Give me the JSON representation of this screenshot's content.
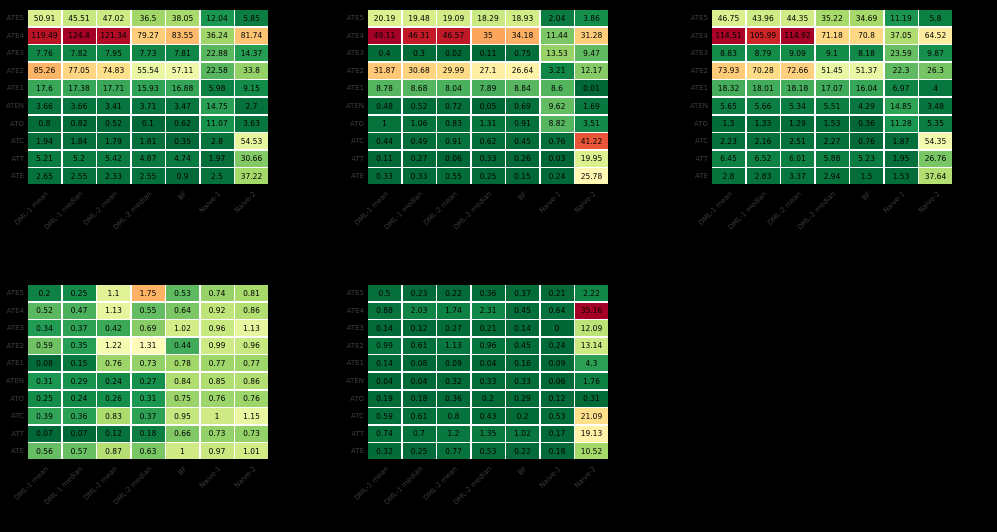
{
  "figure": {
    "background": "#000000",
    "tick_label_color": "#3c3c3c",
    "cell_text_color": "#000000",
    "grid_line_color": "#ffffff"
  },
  "colormap_stops": [
    "#006837",
    "#1a9850",
    "#66bd63",
    "#a6d96a",
    "#d9ef8b",
    "#ffffbf",
    "#fee08b",
    "#fdae61",
    "#f46d43",
    "#d73027",
    "#a50026"
  ],
  "chart_data": [
    {
      "type": "heatmap",
      "panel": "top-left",
      "rows": [
        "ATE5",
        "ATE4",
        "ATE3",
        "ATE2",
        "ATE1",
        "ATEN",
        "ATO",
        "ATC",
        "ATT",
        "ATE"
      ],
      "cols": [
        "DML-1 mean",
        "DML-1 median",
        "DML-2 mean",
        "DML-2 median",
        "BF",
        "Naive-1",
        "Naive-2"
      ],
      "values": [
        [
          50.91,
          45.51,
          47.02,
          36.5,
          38.05,
          12.04,
          5.85
        ],
        [
          119.49,
          124.4,
          121.34,
          79.27,
          83.55,
          36.24,
          81.74
        ],
        [
          7.76,
          7.82,
          7.95,
          7.73,
          7.81,
          22.88,
          14.37
        ],
        [
          85.26,
          77.05,
          74.83,
          55.54,
          57.11,
          22.58,
          33.8
        ],
        [
          17.6,
          17.38,
          17.71,
          15.93,
          16.88,
          5.98,
          9.15
        ],
        [
          3.66,
          3.66,
          3.41,
          3.71,
          3.47,
          14.75,
          2.7
        ],
        [
          0.8,
          0.82,
          0.52,
          0.1,
          0.62,
          11.07,
          3.63
        ],
        [
          1.94,
          1.84,
          1.79,
          1.81,
          0.35,
          2.8,
          54.53
        ],
        [
          5.21,
          5.2,
          5.42,
          4.87,
          4.74,
          1.97,
          30.66
        ],
        [
          2.65,
          2.55,
          2.33,
          2.55,
          0.9,
          2.5,
          37.22
        ]
      ],
      "color_scale": {
        "palette": "RdYlGn reversed",
        "vmin": null,
        "vmax": null
      }
    },
    {
      "type": "heatmap",
      "panel": "top-middle",
      "rows": [
        "ATE5",
        "ATE4",
        "ATE3",
        "ATE2",
        "ATE1",
        "ATEN",
        "ATO",
        "ATC",
        "ATT",
        "ATE"
      ],
      "cols": [
        "DML-1 mean",
        "DML-1 median",
        "DML-2 mean",
        "DML-2 median",
        "BF",
        "Naive-1",
        "Naive-2"
      ],
      "values": [
        [
          20.19,
          19.48,
          19.09,
          18.29,
          18.93,
          2.04,
          3.86
        ],
        [
          49.11,
          46.31,
          46.57,
          35,
          34.18,
          11.44,
          31.28
        ],
        [
          0.4,
          0.3,
          0.02,
          0.11,
          0.75,
          13.53,
          9.47
        ],
        [
          31.87,
          30.68,
          29.99,
          27.1,
          26.64,
          3.21,
          12.17
        ],
        [
          8.78,
          8.68,
          8.04,
          7.89,
          8.84,
          8.6,
          0.01
        ],
        [
          0.48,
          0.52,
          0.72,
          0.05,
          0.69,
          9.62,
          1.69
        ],
        [
          1,
          1.06,
          0.83,
          1.31,
          0.91,
          8.82,
          3.51
        ],
        [
          0.44,
          0.49,
          0.91,
          0.62,
          0.45,
          0.76,
          41.22
        ],
        [
          0.11,
          0.27,
          0.06,
          0.33,
          0.26,
          0.03,
          19.95
        ],
        [
          0.33,
          0.33,
          0.55,
          0.25,
          0.15,
          0.24,
          25.78
        ]
      ],
      "color_scale": {
        "palette": "RdYlGn reversed",
        "vmin": null,
        "vmax": null
      }
    },
    {
      "type": "heatmap",
      "panel": "top-right",
      "rows": [
        "ATE5",
        "ATE4",
        "ATE3",
        "ATE2",
        "ATE1",
        "ATEN",
        "ATO",
        "ATC",
        "ATT",
        "ATE"
      ],
      "cols": [
        "DML-1 mean",
        "DML-1 median",
        "DML-2 mean",
        "DML-2 median",
        "BF",
        "Naive-1",
        "Naive-2"
      ],
      "values": [
        [
          46.75,
          43.96,
          44.35,
          35.22,
          34.69,
          11.19,
          5.8
        ],
        [
          114.51,
          105.99,
          114.92,
          71.18,
          70.8,
          37.05,
          64.52
        ],
        [
          8.83,
          8.79,
          9.09,
          9.1,
          8.18,
          23.59,
          9.87
        ],
        [
          73.93,
          70.28,
          72.66,
          51.45,
          51.37,
          22.3,
          26.3
        ],
        [
          18.32,
          18.01,
          18.18,
          17.07,
          16.04,
          6.97,
          4
        ],
        [
          5.65,
          5.66,
          5.34,
          5.51,
          4.29,
          14.85,
          3.48
        ],
        [
          1.3,
          1.33,
          1.29,
          1.53,
          0.36,
          11.28,
          5.35
        ],
        [
          2.23,
          2.16,
          2.51,
          2.27,
          0.76,
          1.87,
          54.35
        ],
        [
          6.45,
          6.52,
          6.01,
          5.88,
          5.23,
          1.95,
          26.76
        ],
        [
          2.8,
          2.83,
          3.37,
          2.94,
          1.5,
          1.53,
          37.64
        ]
      ],
      "color_scale": {
        "palette": "RdYlGn reversed",
        "vmin": null,
        "vmax": null
      }
    },
    {
      "type": "heatmap",
      "panel": "bottom-left",
      "rows": [
        "ATE5",
        "ATE4",
        "ATE3",
        "ATE2",
        "ATE1",
        "ATEN",
        "ATO",
        "ATC",
        "ATT",
        "ATE"
      ],
      "cols": [
        "DML-1 mean",
        "DML-1 median",
        "DML-2 mean",
        "DML-2 median",
        "BF",
        "Naive-1",
        "Naive-2"
      ],
      "values": [
        [
          0.2,
          0.25,
          1.1,
          1.75,
          0.53,
          0.74,
          0.81
        ],
        [
          0.52,
          0.47,
          1.13,
          0.55,
          0.64,
          0.92,
          0.86
        ],
        [
          0.34,
          0.37,
          0.42,
          0.69,
          1.02,
          0.96,
          1.13
        ],
        [
          0.59,
          0.35,
          1.22,
          1.31,
          0.44,
          0.99,
          0.96
        ],
        [
          0.08,
          0.15,
          0.76,
          0.73,
          0.78,
          0.77,
          0.77
        ],
        [
          0.31,
          0.29,
          0.24,
          0.27,
          0.84,
          0.85,
          0.86
        ],
        [
          0.25,
          0.24,
          0.26,
          0.31,
          0.75,
          0.76,
          0.76
        ],
        [
          0.39,
          0.36,
          0.83,
          0.37,
          0.95,
          1,
          1.15
        ],
        [
          0.07,
          0.07,
          0.12,
          0.18,
          0.66,
          0.73,
          0.73
        ],
        [
          0.56,
          0.57,
          0.87,
          0.63,
          1,
          0.97,
          1.01
        ]
      ],
      "color_scale": {
        "palette": "RdYlGn reversed",
        "vmin": null,
        "vmax": 2.5
      }
    },
    {
      "type": "heatmap",
      "panel": "bottom-middle",
      "rows": [
        "ATE5",
        "ATE4",
        "ATE3",
        "ATE2",
        "ATE1",
        "ATEN",
        "ATO",
        "ATC",
        "ATT",
        "ATE"
      ],
      "cols": [
        "DML-1 mean",
        "DML-1 median",
        "DML-2 mean",
        "DML-2 median",
        "BF",
        "Naive-1",
        "Naive-2"
      ],
      "values": [
        [
          0.5,
          0.23,
          0.22,
          0.36,
          0.37,
          0.21,
          2.22
        ],
        [
          0.88,
          2.03,
          1.74,
          2.31,
          0.45,
          0.64,
          35.16
        ],
        [
          0.14,
          0.12,
          0.27,
          0.21,
          0.14,
          0,
          12.09
        ],
        [
          0.99,
          0.61,
          1.13,
          0.96,
          0.45,
          0.24,
          13.14
        ],
        [
          0.14,
          0.08,
          0.09,
          0.04,
          0.16,
          0.09,
          4.3
        ],
        [
          0.04,
          0.04,
          0.32,
          0.33,
          0.33,
          0.06,
          1.76
        ],
        [
          0.19,
          0.18,
          0.36,
          0.2,
          0.29,
          0.12,
          0.31
        ],
        [
          0.59,
          0.61,
          0.8,
          0.43,
          0.2,
          0.53,
          21.09
        ],
        [
          0.74,
          0.7,
          1.2,
          1.35,
          1.02,
          0.17,
          19.13
        ],
        [
          0.32,
          0.25,
          0.77,
          0.53,
          0.22,
          0.18,
          10.52
        ]
      ],
      "color_scale": {
        "palette": "RdYlGn reversed",
        "vmin": null,
        "vmax": null
      }
    }
  ]
}
